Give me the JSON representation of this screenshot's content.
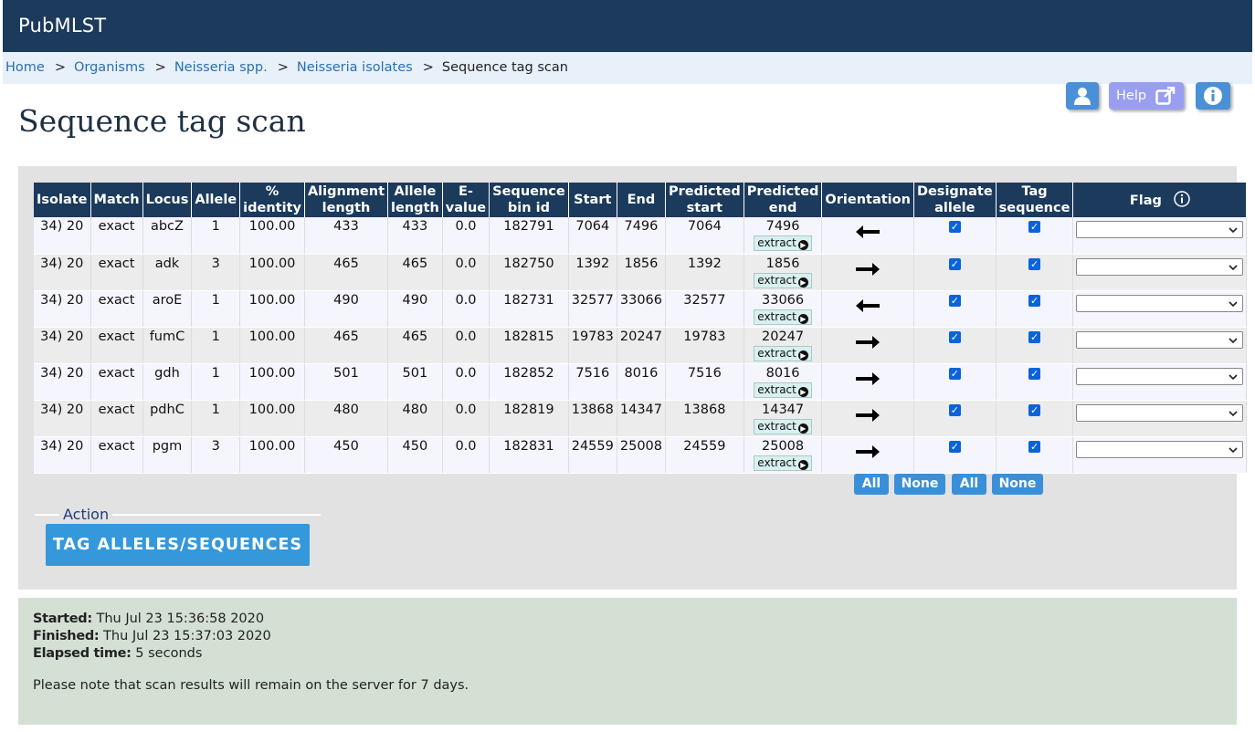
{
  "site": {
    "brand": "PubMLST"
  },
  "breadcrumb": [
    {
      "label": "Home",
      "link": true
    },
    {
      "label": "Organisms",
      "link": true
    },
    {
      "label": "Neisseria spp.",
      "link": true
    },
    {
      "label": "Neisseria isolates",
      "link": true
    },
    {
      "label": "Sequence tag scan",
      "link": false
    }
  ],
  "breadcrumb_sep": ">",
  "top_buttons": {
    "help_label": "Help",
    "user_icon": "user-icon",
    "external_icon": "external-link-icon",
    "info_icon": "info-icon"
  },
  "page_title": "Sequence tag scan",
  "table": {
    "headers": {
      "isolate": "Isolate",
      "match": "Match",
      "locus": "Locus",
      "allele": "Allele",
      "identity_1": "%",
      "identity_2": "identity",
      "align_1": "Alignment",
      "align_2": "length",
      "allele_len_1": "Allele",
      "allele_len_2": "length",
      "evalue_1": "E-",
      "evalue_2": "value",
      "bin_1": "Sequence",
      "bin_2": "bin id",
      "start": "Start",
      "end": "End",
      "pstart_1": "Predicted",
      "pstart_2": "start",
      "pend_1": "Predicted",
      "pend_2": "end",
      "orientation": "Orientation",
      "designate_1": "Designate",
      "designate_2": "allele",
      "tagseq": "Tag sequence",
      "flag": "Flag"
    },
    "extract_label": "extract",
    "rows": [
      {
        "isolate": "34) 20",
        "match": "exact",
        "locus": "abcZ",
        "allele": "1",
        "identity": "100.00",
        "align_len": "433",
        "allele_len": "433",
        "evalue": "0.0",
        "bin_id": "182791",
        "start": "7064",
        "end": "7496",
        "pred_start": "7064",
        "pred_end": "7496",
        "orientation": "reverse"
      },
      {
        "isolate": "34) 20",
        "match": "exact",
        "locus": "adk",
        "allele": "3",
        "identity": "100.00",
        "align_len": "465",
        "allele_len": "465",
        "evalue": "0.0",
        "bin_id": "182750",
        "start": "1392",
        "end": "1856",
        "pred_start": "1392",
        "pred_end": "1856",
        "orientation": "forward"
      },
      {
        "isolate": "34) 20",
        "match": "exact",
        "locus": "aroE",
        "allele": "1",
        "identity": "100.00",
        "align_len": "490",
        "allele_len": "490",
        "evalue": "0.0",
        "bin_id": "182731",
        "start": "32577",
        "end": "33066",
        "pred_start": "32577",
        "pred_end": "33066",
        "orientation": "reverse"
      },
      {
        "isolate": "34) 20",
        "match": "exact",
        "locus": "fumC",
        "allele": "1",
        "identity": "100.00",
        "align_len": "465",
        "allele_len": "465",
        "evalue": "0.0",
        "bin_id": "182815",
        "start": "19783",
        "end": "20247",
        "pred_start": "19783",
        "pred_end": "20247",
        "orientation": "forward"
      },
      {
        "isolate": "34) 20",
        "match": "exact",
        "locus": "gdh",
        "allele": "1",
        "identity": "100.00",
        "align_len": "501",
        "allele_len": "501",
        "evalue": "0.0",
        "bin_id": "182852",
        "start": "7516",
        "end": "8016",
        "pred_start": "7516",
        "pred_end": "8016",
        "orientation": "forward"
      },
      {
        "isolate": "34) 20",
        "match": "exact",
        "locus": "pdhC",
        "allele": "1",
        "identity": "100.00",
        "align_len": "480",
        "allele_len": "480",
        "evalue": "0.0",
        "bin_id": "182819",
        "start": "13868",
        "end": "14347",
        "pred_start": "13868",
        "pred_end": "14347",
        "orientation": "forward"
      },
      {
        "isolate": "34) 20",
        "match": "exact",
        "locus": "pgm",
        "allele": "3",
        "identity": "100.00",
        "align_len": "450",
        "allele_len": "450",
        "evalue": "0.0",
        "bin_id": "182831",
        "start": "24559",
        "end": "25008",
        "pred_start": "24559",
        "pred_end": "25008",
        "orientation": "forward"
      }
    ]
  },
  "select_buttons": {
    "all": "All",
    "none": "None"
  },
  "action": {
    "legend": "Action",
    "submit": "TAG ALLELES/SEQUENCES"
  },
  "info": {
    "started_label": "Started:",
    "started": "Thu Jul 23 15:36:58 2020",
    "finished_label": "Finished:",
    "finished": "Thu Jul 23 15:37:03 2020",
    "elapsed_label": "Elapsed time:",
    "elapsed": "5 seconds",
    "note": "Please note that scan results will remain on the server for 7 days."
  },
  "colors": {
    "header": "#1b3a5c",
    "accent": "#3498db",
    "info_bg": "#d5e0d5"
  }
}
